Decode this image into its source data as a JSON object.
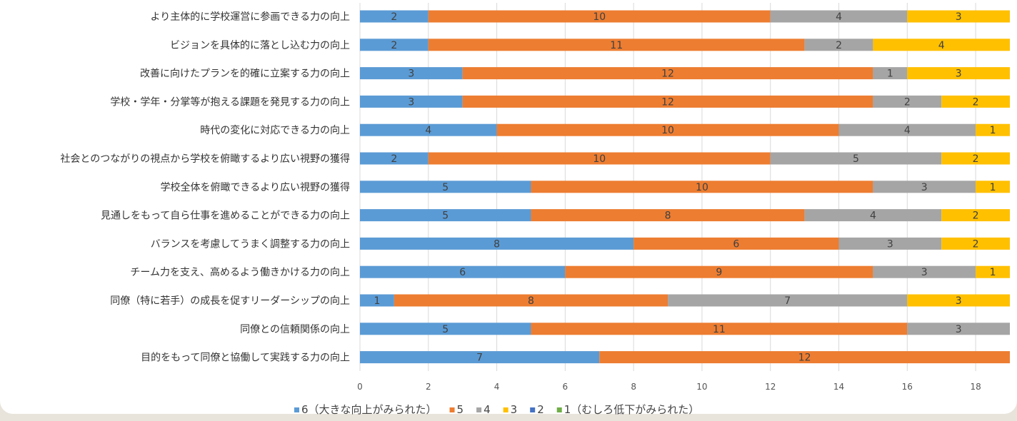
{
  "chart_data": {
    "type": "bar",
    "orientation": "horizontal",
    "stacked": true,
    "title": "",
    "xlabel": "",
    "ylabel": "",
    "xlim": [
      0,
      19
    ],
    "x_ticks": [
      0,
      2,
      4,
      6,
      8,
      10,
      12,
      14,
      16,
      18
    ],
    "grid": "vertical",
    "legend_position": "bottom",
    "categories": [
      "より主体的に学校運営に参画できる力の向上",
      "ビジョンを具体的に落とし込む力の向上",
      "改善に向けたプランを的確に立案する力の向上",
      "学校・学年・分掌等が抱える課題を発見する力の向上",
      "時代の変化に対応できる力の向上",
      "社会とのつながりの視点から学校を俯瞰するより広い視野の獲得",
      "学校全体を俯瞰できるより広い視野の獲得",
      "見通しをもって自ら仕事を進めることができる力の向上",
      "バランスを考慮してうまく調整する力の向上",
      "チーム力を支え、高めるよう働きかける力の向上",
      "同僚（特に若手）の成長を促すリーダーシップの向上",
      "同僚との信頼関係の向上",
      "目的をもって同僚と協働して実践する力の向上"
    ],
    "series": [
      {
        "name": "6（大きな向上がみられた）",
        "color": "#5b9bd5",
        "values": [
          2,
          2,
          3,
          3,
          4,
          2,
          5,
          5,
          8,
          6,
          1,
          5,
          7
        ]
      },
      {
        "name": "5",
        "color": "#ed7d31",
        "values": [
          10,
          11,
          12,
          12,
          10,
          10,
          10,
          8,
          6,
          9,
          8,
          11,
          12
        ]
      },
      {
        "name": "4",
        "color": "#a5a5a5",
        "values": [
          4,
          2,
          1,
          2,
          4,
          5,
          3,
          4,
          3,
          3,
          7,
          3,
          0
        ]
      },
      {
        "name": "3",
        "color": "#ffc000",
        "values": [
          3,
          4,
          3,
          2,
          1,
          2,
          1,
          2,
          2,
          1,
          3,
          0,
          0
        ]
      },
      {
        "name": "2",
        "color": "#4472c4",
        "values": [
          0,
          0,
          0,
          0,
          0,
          0,
          0,
          0,
          0,
          0,
          0,
          0,
          0
        ]
      },
      {
        "name": "1（むしろ低下がみられた）",
        "color": "#70ad47",
        "values": [
          0,
          0,
          0,
          0,
          0,
          0,
          0,
          0,
          0,
          0,
          0,
          0,
          0
        ]
      }
    ]
  }
}
